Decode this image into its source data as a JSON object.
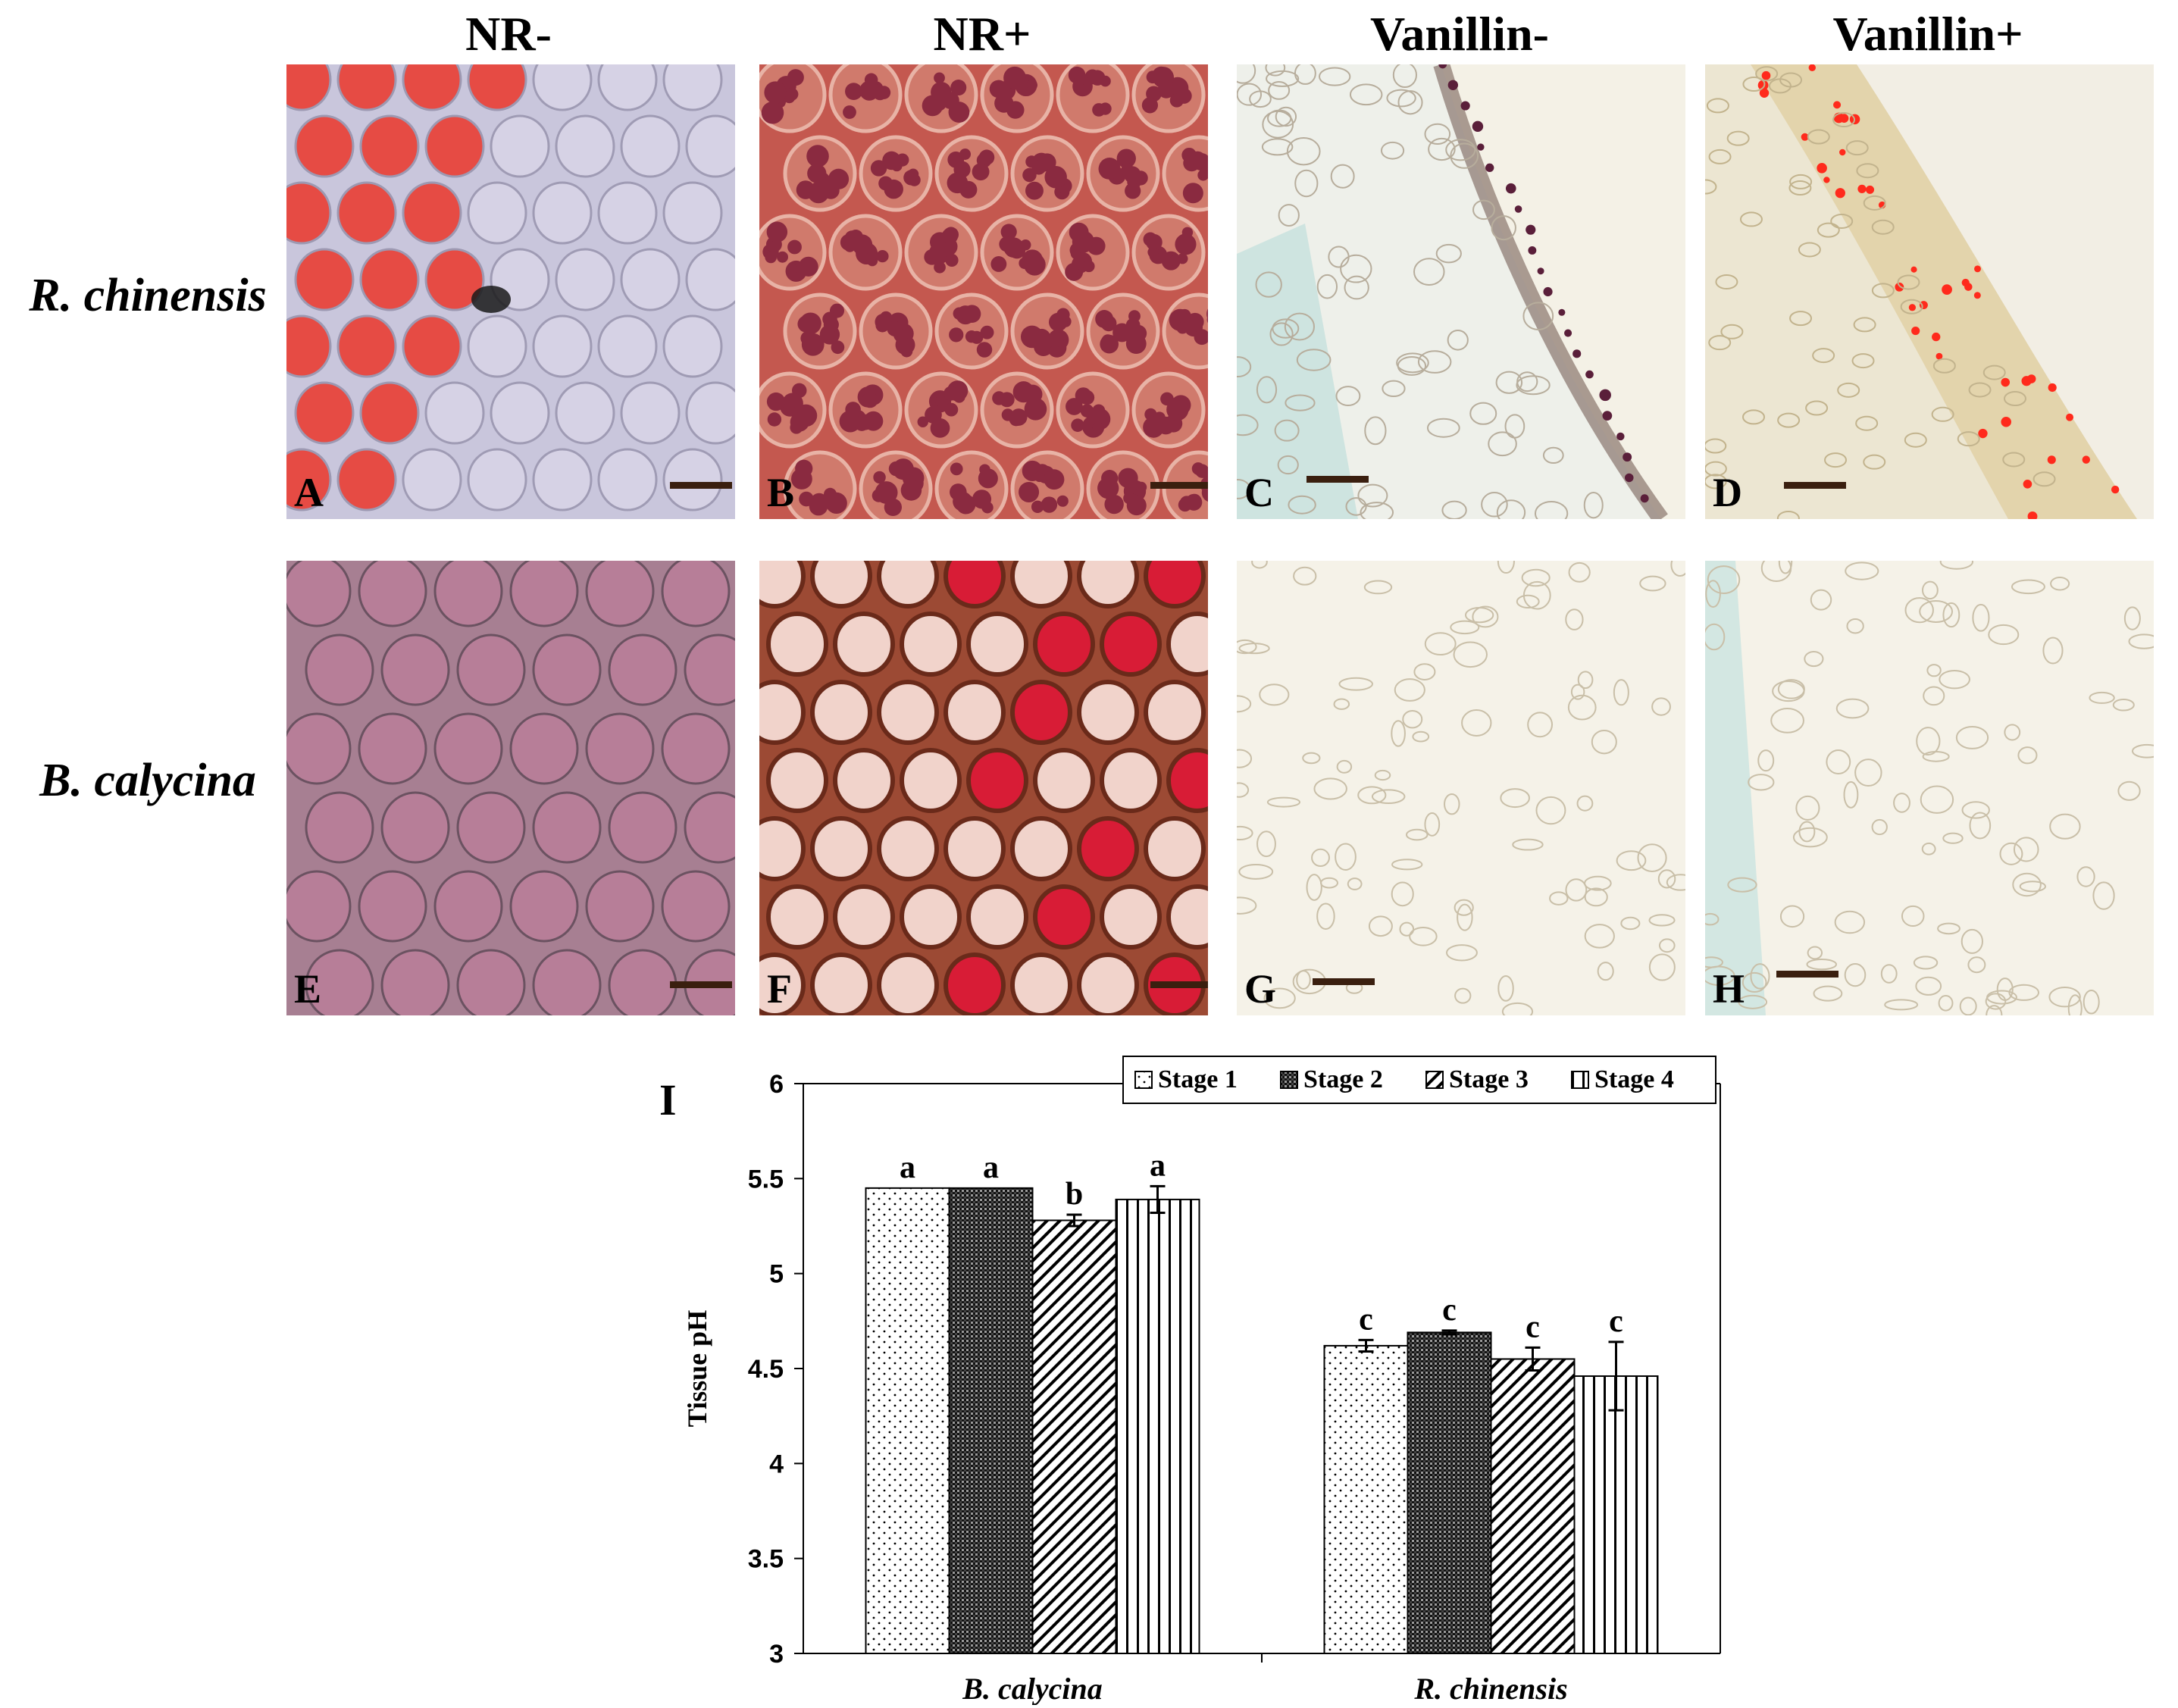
{
  "columns": [
    "NR-",
    "NR+",
    "Vanillin-",
    "Vanillin+"
  ],
  "rows": [
    "R. chinensis",
    "B. calycina"
  ],
  "panels": [
    {
      "letter": "A",
      "stain": "neutral red",
      "tone": "red-cells-left-pale-right"
    },
    {
      "letter": "B",
      "stain": "neutral red",
      "tone": "dark-red-aggregates"
    },
    {
      "letter": "C",
      "stain": "vanillin",
      "tone": "pale-section-dark-epidermis"
    },
    {
      "letter": "D",
      "stain": "vanillin",
      "tone": "pale-section-red-dots"
    },
    {
      "letter": "E",
      "stain": "neutral red",
      "tone": "mauve-cells"
    },
    {
      "letter": "F",
      "stain": "neutral red",
      "tone": "mixed-red-clear-cells"
    },
    {
      "letter": "G",
      "stain": "vanillin",
      "tone": "pale-section"
    },
    {
      "letter": "H",
      "stain": "vanillin",
      "tone": "pale-section"
    }
  ],
  "chart_letter": "I",
  "colors": {
    "cell_red": "#e8453c",
    "cell_pale": "#d8d4e6",
    "tissue_dark_red": "#8a2a40",
    "tissue_mauve": "#b77e98",
    "section_bg": "#f6f3ea",
    "scale_bar": "#3a1f0f"
  },
  "chart_data": {
    "type": "bar",
    "categories": [
      "B. calycina",
      "R. chinensis"
    ],
    "series": [
      {
        "name": "Stage 1",
        "pattern": "dots",
        "values": [
          5.45,
          4.62
        ],
        "errors": [
          0.0,
          0.03
        ],
        "letters": [
          "a",
          "c"
        ]
      },
      {
        "name": "Stage 2",
        "pattern": "crosshatch",
        "values": [
          5.45,
          4.69
        ],
        "errors": [
          0.0,
          0.01
        ],
        "letters": [
          "a",
          "c"
        ]
      },
      {
        "name": "Stage 3",
        "pattern": "diagonal",
        "values": [
          5.28,
          4.55
        ],
        "errors": [
          0.03,
          0.06
        ],
        "letters": [
          "b",
          "c"
        ]
      },
      {
        "name": "Stage 4",
        "pattern": "vertical",
        "values": [
          5.39,
          4.46
        ],
        "errors": [
          0.07,
          0.18
        ],
        "letters": [
          "a",
          "c"
        ]
      }
    ],
    "ylabel": "Tissue pH",
    "xlabel": "",
    "ylim": [
      3,
      6
    ],
    "yticks": [
      3,
      3.5,
      4,
      4.5,
      5,
      5.5,
      6
    ],
    "legend_position": "top"
  }
}
